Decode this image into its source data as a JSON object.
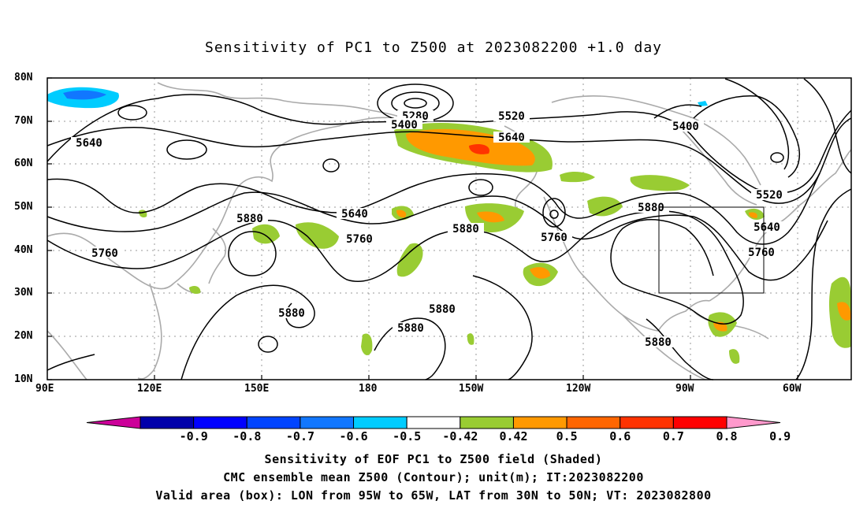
{
  "title": "Sensitivity of PC1 to Z500 at 2023082200 +1.0 day",
  "lat_labels": [
    "80N",
    "70N",
    "60N",
    "50N",
    "40N",
    "30N",
    "20N",
    "10N"
  ],
  "lon_labels": [
    "90E",
    "120E",
    "150E",
    "180",
    "150W",
    "120W",
    "90W",
    "60W"
  ],
  "contour_labels": [
    {
      "text": "5280"
    },
    {
      "text": "5400"
    },
    {
      "text": "5400"
    },
    {
      "text": "5520"
    },
    {
      "text": "5520"
    },
    {
      "text": "5640"
    },
    {
      "text": "5640"
    },
    {
      "text": "5640"
    },
    {
      "text": "5640"
    },
    {
      "text": "5760"
    },
    {
      "text": "5760"
    },
    {
      "text": "5760"
    },
    {
      "text": "5760"
    },
    {
      "text": "5880"
    },
    {
      "text": "5880"
    },
    {
      "text": "5880"
    },
    {
      "text": "5880"
    },
    {
      "text": "5880"
    },
    {
      "text": "5880"
    },
    {
      "text": "5880"
    }
  ],
  "colorbar": {
    "labels": [
      "-0.9",
      "-0.8",
      "-0.7",
      "-0.6",
      "-0.5",
      "-0.42",
      "0.42",
      "0.5",
      "0.6",
      "0.7",
      "0.8",
      "0.9"
    ],
    "colors": [
      "#cc0099",
      "#0000aa",
      "#0000ff",
      "#0044ff",
      "#1177ff",
      "#00ccff",
      "#ffffff",
      "#99cc33",
      "#ff9900",
      "#ff6600",
      "#ff3300",
      "#ff0000",
      "#ff99cc"
    ]
  },
  "valid_box": {
    "lon_min": "95W",
    "lon_max": "65W",
    "lat_min": "30N",
    "lat_max": "50N"
  },
  "captions": [
    "Sensitivity of EOF PC1 to Z500 field (Shaded)",
    "CMC ensemble mean Z500 (Contour); unit(m); IT:2023082200",
    "Valid area (box): LON from 95W to 65W, LAT from 30N to 50N; VT: 2023082800"
  ]
}
